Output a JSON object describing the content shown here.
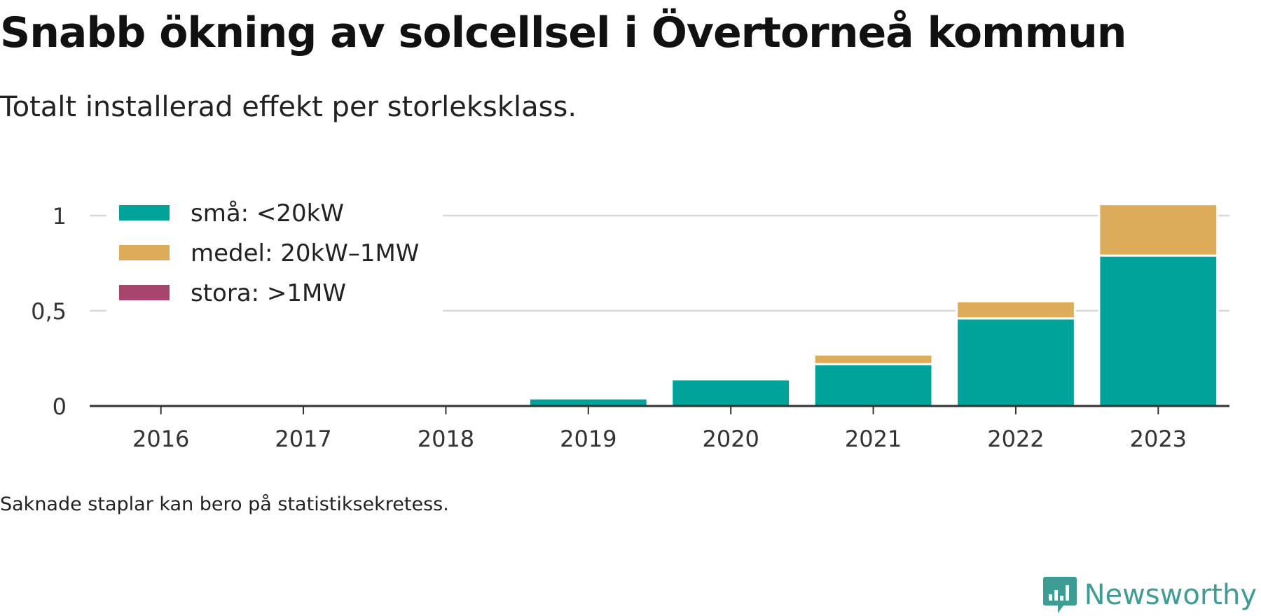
{
  "title": "Snabb ökning av solcellsel i Övertorneå kommun",
  "subtitle": "Totalt installerad effekt per storleksklass.",
  "footnote": "Saknade staplar kan bero på statistiksekretess.",
  "brand": "Newsworthy",
  "colors": {
    "sma": "#00a39a",
    "medel": "#dcac5b",
    "stora": "#a8456c",
    "grid": "#d9d9d9",
    "axis": "#333333",
    "brand": "#3d9c93"
  },
  "chart_data": {
    "type": "bar",
    "stacked": true,
    "categories": [
      "2016",
      "2017",
      "2018",
      "2019",
      "2020",
      "2021",
      "2022",
      "2023"
    ],
    "series": [
      {
        "name": "små: <20kW",
        "color_key": "sma",
        "values": [
          0,
          0,
          0,
          0.04,
          0.14,
          0.22,
          0.46,
          0.79
        ]
      },
      {
        "name": "medel: 20kW–1MW",
        "color_key": "medel",
        "values": [
          0,
          0,
          0,
          0,
          0,
          0.05,
          0.09,
          0.27
        ]
      },
      {
        "name": "stora: >1MW",
        "color_key": "stora",
        "values": [
          0,
          0,
          0,
          0,
          0,
          0,
          0,
          0
        ]
      }
    ],
    "yticks": [
      {
        "value": 0,
        "label": "0"
      },
      {
        "value": 0.5,
        "label": "0,5"
      },
      {
        "value": 1,
        "label": "1"
      }
    ],
    "ylim": [
      0,
      1.07
    ],
    "grid": true,
    "legend_position": "top-left"
  }
}
